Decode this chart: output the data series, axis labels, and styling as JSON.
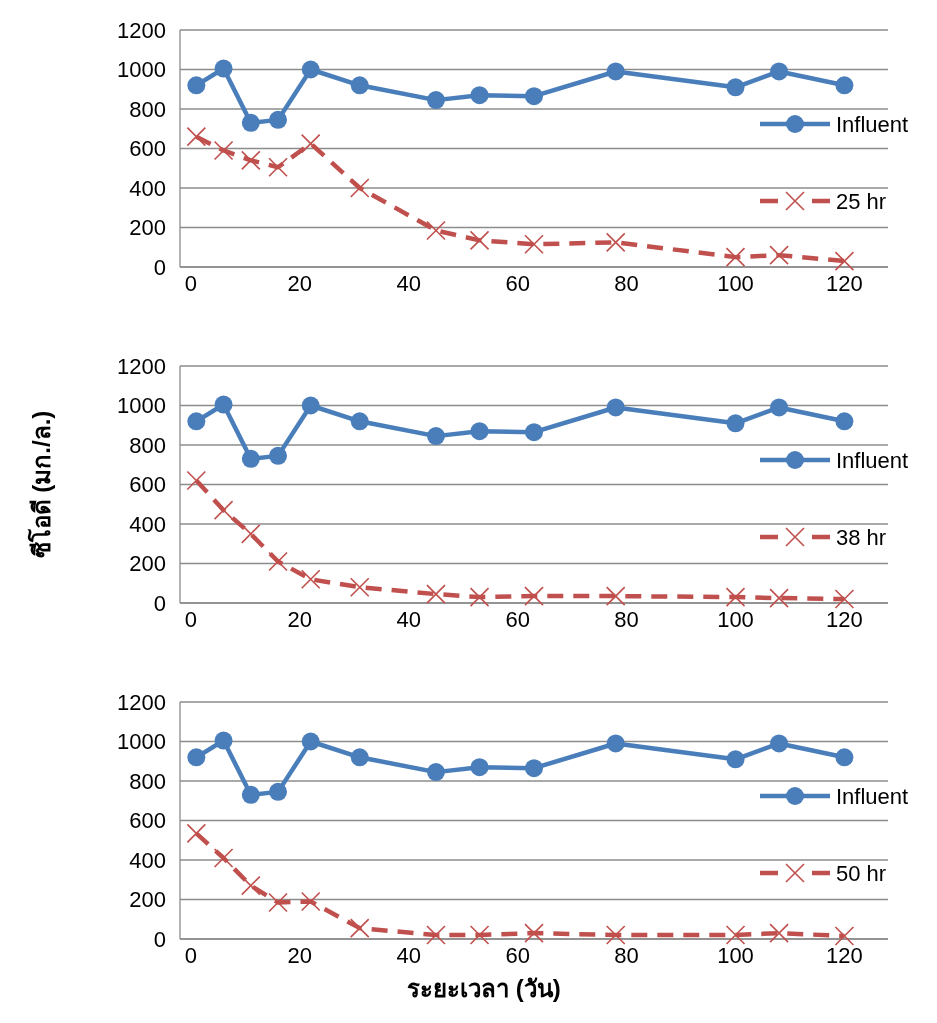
{
  "chart_data": [
    {
      "type": "line",
      "x": [
        1,
        6,
        11,
        16,
        22,
        31,
        45,
        53,
        63,
        78,
        100,
        108,
        120
      ],
      "series": [
        {
          "name": "Influent",
          "color": "#4a7ebb",
          "marker": "circle",
          "line_style": "solid",
          "values": [
            920,
            1005,
            730,
            745,
            1000,
            920,
            845,
            870,
            865,
            990,
            910,
            990,
            920
          ]
        },
        {
          "name": "25 hr",
          "color": "#c0504d",
          "marker": "cross",
          "line_style": "dashed",
          "values": [
            660,
            590,
            540,
            505,
            625,
            400,
            185,
            135,
            115,
            125,
            50,
            60,
            30
          ]
        }
      ],
      "xlim": [
        -2,
        128
      ],
      "xticks": [
        0,
        20,
        40,
        60,
        80,
        100,
        120
      ],
      "ylim": [
        0,
        1200
      ],
      "yticks": [
        0,
        200,
        400,
        600,
        800,
        1000,
        1200
      ],
      "grid": "y",
      "legend": "right"
    },
    {
      "type": "line",
      "x": [
        1,
        6,
        11,
        16,
        22,
        31,
        45,
        53,
        63,
        78,
        100,
        108,
        120
      ],
      "ylabel": "ซีโอดี (มก./ล.)",
      "series": [
        {
          "name": "Influent",
          "color": "#4a7ebb",
          "marker": "circle",
          "line_style": "solid",
          "values": [
            920,
            1005,
            730,
            745,
            1000,
            920,
            845,
            870,
            865,
            990,
            910,
            990,
            920
          ]
        },
        {
          "name": "38 hr",
          "color": "#c0504d",
          "marker": "cross",
          "line_style": "dashed",
          "values": [
            620,
            470,
            350,
            210,
            120,
            80,
            45,
            30,
            35,
            35,
            30,
            25,
            20
          ]
        }
      ],
      "xlim": [
        -2,
        128
      ],
      "xticks": [
        0,
        20,
        40,
        60,
        80,
        100,
        120
      ],
      "ylim": [
        0,
        1200
      ],
      "yticks": [
        0,
        200,
        400,
        600,
        800,
        1000,
        1200
      ],
      "grid": "y",
      "legend": "right"
    },
    {
      "type": "line",
      "x": [
        1,
        6,
        11,
        16,
        22,
        31,
        45,
        53,
        63,
        78,
        100,
        108,
        120
      ],
      "xlabel": "ระยะเวลา (วัน)",
      "series": [
        {
          "name": "Influent",
          "color": "#4a7ebb",
          "marker": "circle",
          "line_style": "solid",
          "values": [
            920,
            1005,
            730,
            745,
            1000,
            920,
            845,
            870,
            865,
            990,
            910,
            990,
            920
          ]
        },
        {
          "name": "50 hr",
          "color": "#c0504d",
          "marker": "cross",
          "line_style": "dashed",
          "values": [
            535,
            410,
            270,
            185,
            190,
            55,
            20,
            20,
            30,
            20,
            20,
            30,
            15
          ]
        }
      ],
      "xlim": [
        -2,
        128
      ],
      "xticks": [
        0,
        20,
        40,
        60,
        80,
        100,
        120
      ],
      "ylim": [
        0,
        1200
      ],
      "yticks": [
        0,
        200,
        400,
        600,
        800,
        1000,
        1200
      ],
      "grid": "y",
      "legend": "right"
    }
  ]
}
